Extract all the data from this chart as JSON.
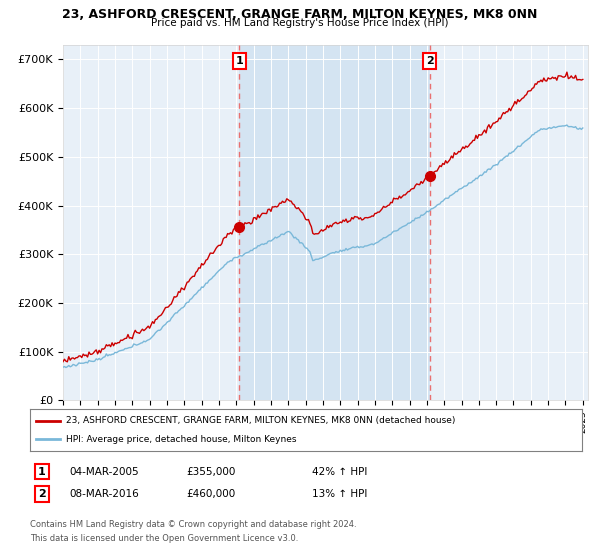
{
  "title": "23, ASHFORD CRESCENT, GRANGE FARM, MILTON KEYNES, MK8 0NN",
  "subtitle": "Price paid vs. HM Land Registry's House Price Index (HPI)",
  "ylabel_ticks": [
    "£0",
    "£100K",
    "£200K",
    "£300K",
    "£400K",
    "£500K",
    "£600K",
    "£700K"
  ],
  "ytick_values": [
    0,
    100000,
    200000,
    300000,
    400000,
    500000,
    600000,
    700000
  ],
  "ylim": [
    0,
    730000
  ],
  "sale1_year": 2005.17,
  "sale1_price": 355000,
  "sale1_label": "1",
  "sale1_date": "04-MAR-2005",
  "sale1_pct": "42%",
  "sale2_year": 2016.17,
  "sale2_price": 460000,
  "sale2_label": "2",
  "sale2_date": "08-MAR-2016",
  "sale2_pct": "13%",
  "hpi_color": "#7ab8d9",
  "price_color": "#cc0000",
  "vline_color": "#e87070",
  "shade_color": "#cce0f0",
  "bg_color": "#ffffff",
  "plot_bg": "#e8f0f8",
  "legend_label_red": "23, ASHFORD CRESCENT, GRANGE FARM, MILTON KEYNES, MK8 0NN (detached house)",
  "legend_label_blue": "HPI: Average price, detached house, Milton Keynes",
  "footer1": "Contains HM Land Registry data © Crown copyright and database right 2024.",
  "footer2": "This data is licensed under the Open Government Licence v3.0."
}
